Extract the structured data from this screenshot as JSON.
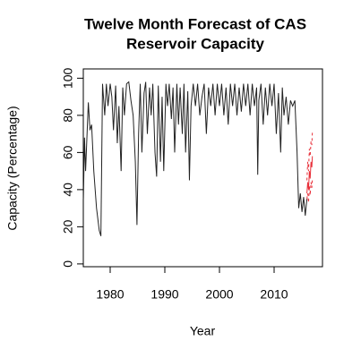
{
  "chart_data": {
    "type": "line",
    "title_lines": [
      "Twelve Month Forecast of CAS",
      "Reservoir Capacity"
    ],
    "x_label": "Year",
    "y_label": "Capacity (Percentage)",
    "xlim": [
      1975.08,
      2018.85
    ],
    "xticks": [
      1980,
      1990,
      2000,
      2010
    ],
    "ylim": [
      -1.5,
      105
    ],
    "yticks": [
      0,
      20,
      40,
      60,
      80,
      100
    ],
    "grid": false,
    "series": [
      {
        "color": "#222222",
        "style": "solid",
        "x": [
          1975.1,
          1975.3,
          1975.5,
          1975.7,
          1976.0,
          1976.3,
          1976.6,
          1977.0,
          1977.5,
          1978.0,
          1978.3,
          1978.6,
          1979.0,
          1979.3,
          1979.6,
          1980.0,
          1980.3,
          1980.6,
          1981.0,
          1981.3,
          1981.6,
          1982.0,
          1982.3,
          1982.6,
          1983.0,
          1983.4,
          1983.8,
          1984.2,
          1984.6,
          1984.9,
          1985.2,
          1985.5,
          1985.8,
          1986.2,
          1986.5,
          1986.8,
          1987.2,
          1987.5,
          1987.8,
          1988.2,
          1988.5,
          1988.8,
          1989.2,
          1989.5,
          1989.8,
          1990.2,
          1990.5,
          1990.8,
          1991.2,
          1991.5,
          1991.8,
          1992.2,
          1992.5,
          1992.8,
          1993.2,
          1993.5,
          1993.8,
          1994.2,
          1994.5,
          1994.8,
          1995.2,
          1995.6,
          1996.0,
          1996.4,
          1996.8,
          1997.2,
          1997.6,
          1998.0,
          1998.4,
          1998.8,
          1999.2,
          1999.6,
          2000.0,
          2000.4,
          2000.8,
          2001.2,
          2001.6,
          2002.0,
          2002.4,
          2002.8,
          2003.2,
          2003.6,
          2004.0,
          2004.4,
          2004.8,
          2005.2,
          2005.6,
          2006.0,
          2006.4,
          2006.8,
          2007.0,
          2007.2,
          2007.6,
          2008.0,
          2008.4,
          2008.8,
          2009.2,
          2009.6,
          2010.0,
          2010.4,
          2010.8,
          2011.2,
          2011.5,
          2011.8,
          2012.2,
          2012.6,
          2013.0,
          2013.4,
          2013.8,
          2014.2,
          2014.5,
          2014.8,
          2015.1,
          2015.4,
          2015.7,
          2016.0
        ],
        "values": [
          35,
          68,
          50,
          65,
          87,
          72,
          75,
          50,
          30,
          18,
          15,
          97,
          80,
          97,
          85,
          97,
          90,
          72,
          96,
          65,
          85,
          50,
          95,
          80,
          97,
          98,
          88,
          80,
          55,
          21,
          70,
          97,
          60,
          92,
          98,
          70,
          95,
          80,
          97,
          60,
          47,
          96,
          55,
          90,
          50,
          97,
          85,
          97,
          78,
          95,
          60,
          97,
          75,
          95,
          70,
          97,
          60,
          93,
          45,
          85,
          97,
          85,
          97,
          80,
          90,
          97,
          70,
          95,
          85,
          97,
          80,
          97,
          85,
          97,
          80,
          95,
          75,
          97,
          85,
          97,
          80,
          95,
          82,
          97,
          85,
          97,
          80,
          97,
          85,
          95,
          48,
          88,
          97,
          75,
          95,
          80,
          97,
          85,
          97,
          70,
          92,
          60,
          95,
          80,
          90,
          75,
          88,
          85,
          88,
          60,
          30,
          38,
          28,
          36,
          26,
          35
        ]
      },
      {
        "color": "#e8303a",
        "style": "solid",
        "x": [
          2016.0,
          2016.15,
          2016.3,
          2016.45,
          2016.6,
          2016.75,
          2016.9,
          2017.0
        ],
        "values": [
          38,
          44,
          40,
          50,
          46,
          55,
          52,
          58
        ]
      },
      {
        "color": "#e8303a",
        "style": "dashed",
        "x": [
          2016.0,
          2016.15,
          2016.3,
          2016.45,
          2016.6,
          2016.75,
          2016.9,
          2017.0
        ],
        "values": [
          45,
          55,
          50,
          62,
          58,
          66,
          64,
          71
        ]
      },
      {
        "color": "#e8303a",
        "style": "dashed",
        "x": [
          2016.0,
          2016.15,
          2016.3,
          2016.45,
          2016.6,
          2016.75,
          2016.9,
          2017.0
        ],
        "values": [
          35,
          38,
          33,
          42,
          37,
          44,
          41,
          45
        ]
      }
    ]
  }
}
